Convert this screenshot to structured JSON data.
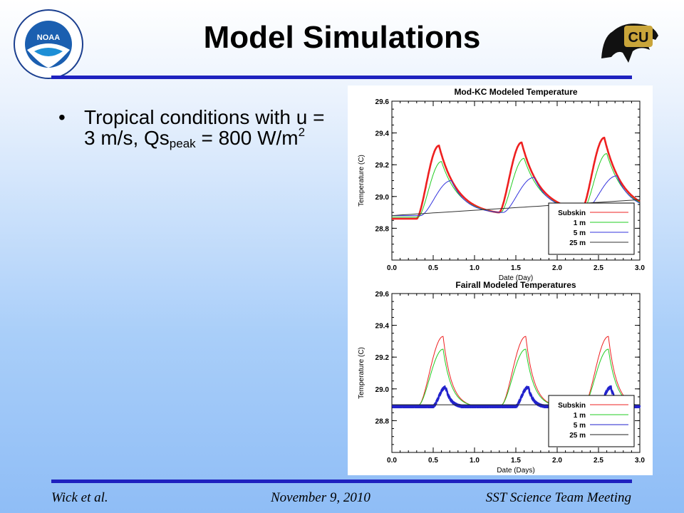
{
  "slide": {
    "title": "Model Simulations",
    "bullet": {
      "text_a": "Tropical conditions with u = 3 m/s, Qs",
      "text_sub": "peak",
      "text_b": " = 800 W/m",
      "text_sup": "2"
    },
    "logos": {
      "noaa_text": "NOAA",
      "cu_text": "CU"
    },
    "footer": {
      "left": "Wick et al.",
      "center": "November 9, 2010",
      "right": "SST Science Team Meeting"
    },
    "colors": {
      "rule": "#1f22bf",
      "bg_top": "#ffffff",
      "bg_bottom": "#8fbdf6"
    }
  },
  "chart_data": [
    {
      "type": "line",
      "title": "Mod-KC Modeled Temperature",
      "xlabel": "Date (Day)",
      "ylabel": "Temperature (C)",
      "xlim": [
        0.0,
        3.0
      ],
      "ylim": [
        28.6,
        29.6
      ],
      "xticks": [
        "0.0",
        "0.5",
        "1.0",
        "1.5",
        "2.0",
        "2.5",
        "3.0"
      ],
      "yticks": [
        "28.8",
        "29.0",
        "29.2",
        "29.4",
        "29.6"
      ],
      "legend": "bottom-right",
      "series": [
        {
          "name": "Subskin",
          "color": "#ee2020",
          "thick": true,
          "peaks": [
            29.32,
            29.34,
            29.37
          ],
          "floor": [
            28.86,
            28.9,
            28.92
          ],
          "peak_t": 0.57,
          "rise_t": 0.3,
          "fall_t": 1.28
        },
        {
          "name": "1 m",
          "color": "#22cc22",
          "peaks": [
            29.22,
            29.24,
            29.27
          ],
          "floor": [
            28.87,
            28.9,
            28.92
          ],
          "peak_t": 0.6,
          "rise_t": 0.32,
          "fall_t": 1.29
        },
        {
          "name": "5 m",
          "color": "#3333dd",
          "peaks": [
            29.1,
            29.12,
            29.13
          ],
          "floor": [
            28.88,
            28.9,
            28.92
          ],
          "peak_t": 0.72,
          "rise_t": 0.35,
          "fall_t": 1.3
        },
        {
          "name": "25 m",
          "color": "#333333",
          "linear": [
            [
              0.0,
              28.88
            ],
            [
              3.0,
              28.98
            ]
          ]
        }
      ]
    },
    {
      "type": "line",
      "title": "Fairall Modeled Temperatures",
      "xlabel": "Date (Days)",
      "ylabel": "Temperature (C)",
      "xlim": [
        0.0,
        3.0
      ],
      "ylim": [
        28.6,
        29.6
      ],
      "xticks": [
        "0.0",
        "0.5",
        "1.0",
        "1.5",
        "2.0",
        "2.5",
        "3.0"
      ],
      "yticks": [
        "28.8",
        "29.0",
        "29.2",
        "29.4",
        "29.6"
      ],
      "legend": "bottom-right",
      "series": [
        {
          "name": "Subskin",
          "color": "#ee2020",
          "peaks": [
            29.33,
            29.33,
            29.33
          ],
          "floor": [
            28.9,
            28.9,
            28.9
          ],
          "peak_t": 0.62,
          "rise_t": 0.33,
          "fall_t": 0.95
        },
        {
          "name": "1 m",
          "color": "#22cc22",
          "peaks": [
            29.25,
            29.25,
            29.25
          ],
          "floor": [
            28.9,
            28.9,
            28.9
          ],
          "peak_t": 0.62,
          "rise_t": 0.33,
          "fall_t": 0.95
        },
        {
          "name": "5 m",
          "color": "#2222cc",
          "thick": true,
          "peaks": [
            29.01,
            29.01,
            29.01
          ],
          "floor": [
            28.89,
            28.89,
            28.89
          ],
          "peak_t": 0.65,
          "rise_t": 0.5,
          "fall_t": 0.85
        },
        {
          "name": "25 m",
          "color": "#222222",
          "linear": [
            [
              0.0,
              28.9
            ],
            [
              3.0,
              28.9
            ]
          ]
        }
      ]
    }
  ]
}
